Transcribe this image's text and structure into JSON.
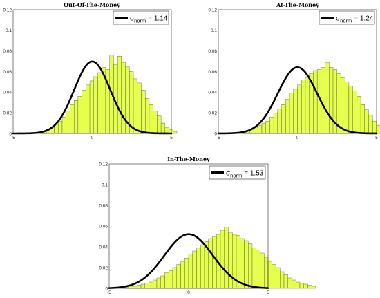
{
  "chart_data": [
    {
      "type": "bar",
      "title": "Out-Of-The-Money",
      "xlim": [
        -5,
        5
      ],
      "ylim": [
        0,
        0.12
      ],
      "xticks": [
        "-5",
        "0",
        "5"
      ],
      "yticks": [
        "0",
        "0.02",
        "0.04",
        "0.06",
        "0.08",
        "0.1",
        "0.12"
      ],
      "bin_start": -3.15,
      "bin_width": 0.25,
      "values": [
        0.002,
        0.004,
        0.006,
        0.009,
        0.012,
        0.016,
        0.022,
        0.028,
        0.032,
        0.036,
        0.042,
        0.047,
        0.051,
        0.055,
        0.059,
        0.064,
        0.062,
        0.076,
        0.067,
        0.075,
        0.069,
        0.065,
        0.06,
        0.053,
        0.049,
        0.042,
        0.034,
        0.028,
        0.022,
        0.017,
        0.01,
        0.006,
        0.004,
        0.002
      ],
      "fit": {
        "mean": 0,
        "sigma": 1.14,
        "peak": 0.0698
      },
      "legend": {
        "symbol": "σ",
        "sub": "norm",
        "value": "= 1.14"
      }
    },
    {
      "type": "bar",
      "title": "At-The-Money",
      "xlim": [
        -5,
        5
      ],
      "ylim": [
        0,
        0.12
      ],
      "xticks": [
        "-5",
        "0",
        "5"
      ],
      "yticks": [
        "0",
        "0.02",
        "0.04",
        "0.06",
        "0.08",
        "0.1",
        "0.12"
      ],
      "bin_start": -3.5,
      "bin_width": 0.25,
      "values": [
        0.002,
        0.003,
        0.004,
        0.006,
        0.008,
        0.01,
        0.012,
        0.016,
        0.02,
        0.024,
        0.028,
        0.033,
        0.039,
        0.043,
        0.047,
        0.052,
        0.055,
        0.058,
        0.061,
        0.062,
        0.064,
        0.069,
        0.064,
        0.062,
        0.058,
        0.054,
        0.05,
        0.046,
        0.041,
        0.036,
        0.028,
        0.023,
        0.018,
        0.012,
        0.008,
        0.005,
        0.003,
        0.002
      ],
      "fit": {
        "mean": 0,
        "sigma": 1.24,
        "peak": 0.0642
      },
      "legend": {
        "symbol": "σ",
        "sub": "norm",
        "value": "= 1.24"
      }
    },
    {
      "type": "bar",
      "title": "In-The-Money",
      "xlim": [
        -5,
        5
      ],
      "ylim": [
        0,
        0.12
      ],
      "xticks": [
        "-5",
        "0",
        "5"
      ],
      "yticks": [
        "0",
        "0.02",
        "0.04",
        "0.06",
        "0.08",
        "0.1",
        "0.12"
      ],
      "bin_start": -4.0,
      "bin_width": 0.25,
      "values": [
        0.001,
        0.002,
        0.002,
        0.003,
        0.004,
        0.005,
        0.006,
        0.008,
        0.01,
        0.012,
        0.015,
        0.017,
        0.02,
        0.023,
        0.026,
        0.029,
        0.033,
        0.036,
        0.039,
        0.042,
        0.045,
        0.048,
        0.05,
        0.052,
        0.056,
        0.059,
        0.054,
        0.052,
        0.051,
        0.048,
        0.046,
        0.043,
        0.039,
        0.037,
        0.034,
        0.03,
        0.026,
        0.023,
        0.02,
        0.016,
        0.013,
        0.01,
        0.008,
        0.006,
        0.005,
        0.004,
        0.003,
        0.002
      ],
      "fit": {
        "mean": 0,
        "sigma": 1.53,
        "peak": 0.0522
      },
      "legend": {
        "symbol": "σ",
        "sub": "norm",
        "value": "= 1.53"
      }
    }
  ]
}
